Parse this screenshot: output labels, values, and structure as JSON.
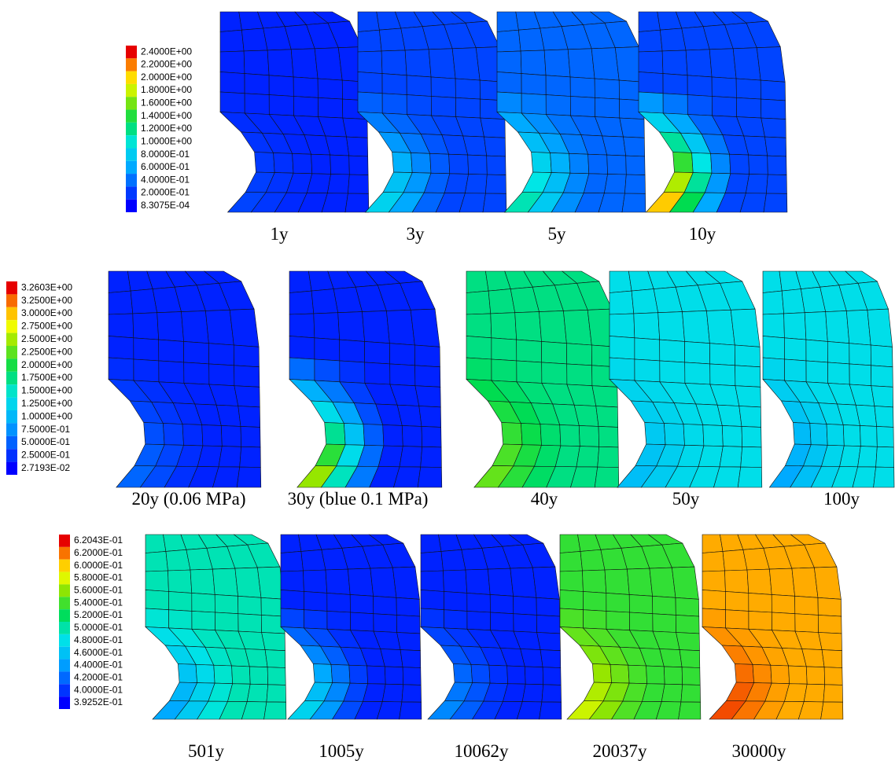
{
  "rows": [
    {
      "legend": [
        "2.4000E+00",
        "2.2000E+00",
        "2.0000E+00",
        "1.8000E+00",
        "1.6000E+00",
        "1.4000E+00",
        "1.2000E+00",
        "1.0000E+00",
        "8.0000E-01",
        "6.0000E-01",
        "4.0000E-01",
        "2.0000E-01",
        "8.3075E-04"
      ],
      "captions": [
        "1y",
        "3y",
        "5y",
        "10y"
      ]
    },
    {
      "legend": [
        "3.2603E+00",
        "3.2500E+00",
        "3.0000E+00",
        "2.7500E+00",
        "2.5000E+00",
        "2.2500E+00",
        "2.0000E+00",
        "1.7500E+00",
        "1.5000E+00",
        "1.2500E+00",
        "1.0000E+00",
        "7.5000E-01",
        "5.0000E-01",
        "2.5000E-01",
        "2.7193E-02"
      ],
      "captions": [
        "20y (0.06 MPa)",
        "30y (blue 0.1 MPa)",
        "40y",
        "50y",
        "100y"
      ]
    },
    {
      "legend": [
        "6.2043E-01",
        "6.2000E-01",
        "6.0000E-01",
        "5.8000E-01",
        "5.6000E-01",
        "5.4000E-01",
        "5.2000E-01",
        "5.0000E-01",
        "4.8000E-01",
        "4.6000E-01",
        "4.4000E-01",
        "4.2000E-01",
        "4.0000E-01",
        "3.9252E-01"
      ],
      "captions": [
        "501y",
        "1005y",
        "10062y",
        "20037y",
        "30000y"
      ]
    }
  ]
}
